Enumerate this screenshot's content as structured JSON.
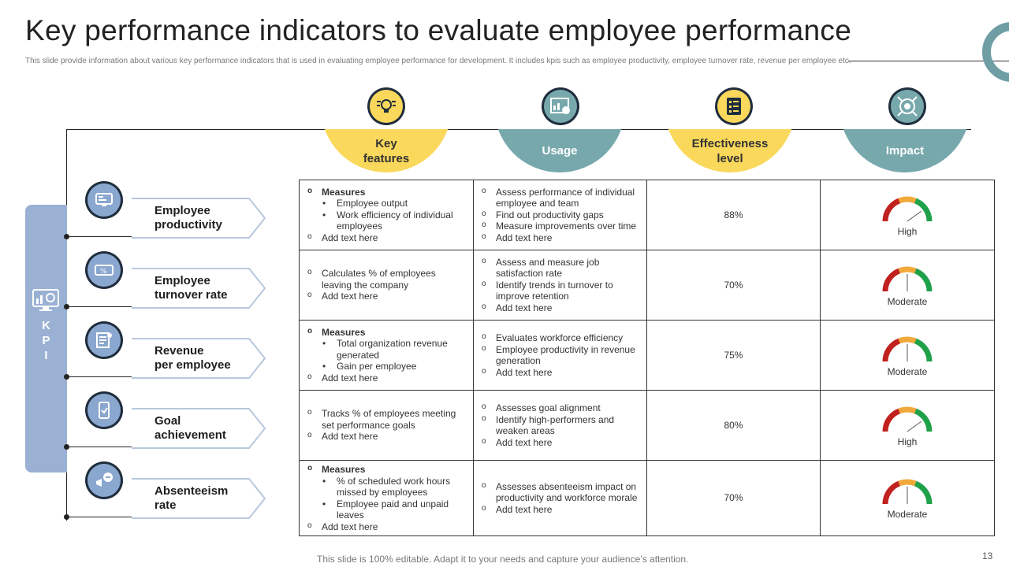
{
  "title": "Key performance indicators to evaluate employee performance",
  "subtitle": "This slide provide information about various key performance indicators that is used in evaluating employee performance for development. It includes kpis such as employee productivity, employee turnover rate, revenue per employee etc.",
  "kpi_label": [
    "K",
    "P",
    "I"
  ],
  "columns": [
    {
      "label_line1": "Key",
      "label_line2": "features",
      "icon": "bulb-gears-icon"
    },
    {
      "label_line1": "Usage",
      "label_line2": "",
      "icon": "dashboard-chart-icon"
    },
    {
      "label_line1": "Effectiveness",
      "label_line2": "level",
      "icon": "checklist-icon"
    },
    {
      "label_line1": "Impact",
      "label_line2": "",
      "icon": "target-gear-icon"
    }
  ],
  "rows": [
    {
      "label_line1": "Employee",
      "label_line2": "productivity",
      "icon": "monitor-icon",
      "features": [
        {
          "type": "o",
          "bold": true,
          "text": "Measures"
        },
        {
          "type": "b",
          "text": "Employee output"
        },
        {
          "type": "b",
          "text": "Work efficiency of individual employees"
        },
        {
          "type": "o",
          "text": "Add text here"
        }
      ],
      "usage": [
        "Assess performance of individual employee and team",
        "Find out productivity gaps",
        "Measure improvements over time",
        "Add text here"
      ],
      "effectiveness": "88%",
      "impact": "High",
      "gauge_level": 0.8
    },
    {
      "label_line1": "Employee",
      "label_line2": "turnover rate",
      "icon": "percent-ticket-icon",
      "features": [
        {
          "type": "o",
          "text": "Calculates % of employees leaving the company"
        },
        {
          "type": "o",
          "text": "Add text here"
        }
      ],
      "usage": [
        "Assess and measure job satisfaction rate",
        " Identify trends in turnover to improve retention",
        "Add text here"
      ],
      "effectiveness": "70%",
      "impact": "Moderate",
      "gauge_level": 0.5
    },
    {
      "label_line1": "Revenue",
      "label_line2": "per employee",
      "icon": "report-icon",
      "features": [
        {
          "type": "o",
          "bold": true,
          "text": "Measures"
        },
        {
          "type": "b",
          "text": "Total organization revenue generated"
        },
        {
          "type": "b",
          "text": "Gain per employee"
        },
        {
          "type": "o",
          "text": "Add text here"
        }
      ],
      "usage": [
        "Evaluates workforce efficiency",
        "Employee productivity in revenue generation",
        "Add text here"
      ],
      "effectiveness": "75%",
      "impact": "Moderate",
      "gauge_level": 0.5
    },
    {
      "label_line1": "Goal",
      "label_line2": "achievement",
      "icon": "mobile-goal-icon",
      "features": [
        {
          "type": "o",
          "text": "Tracks % of employees meeting set performance goals"
        },
        {
          "type": "o",
          "text": "Add text here"
        }
      ],
      "usage": [
        "Assesses goal alignment",
        "Identify high-performers and weaken areas",
        "Add text here"
      ],
      "effectiveness": "80%",
      "impact": "High",
      "gauge_level": 0.8
    },
    {
      "label_line1": "Absenteeism",
      "label_line2": "rate",
      "icon": "megaphone-chat-icon",
      "features": [
        {
          "type": "o",
          "bold": true,
          "text": "Measures"
        },
        {
          "type": "b",
          "text": "% of scheduled work hours missed by employees"
        },
        {
          "type": "b",
          "text": "Employee paid and unpaid leaves"
        },
        {
          "type": "o",
          "text": "Add text here"
        }
      ],
      "usage": [
        "Assesses absenteeism impact on productivity and workforce morale",
        "Add text here"
      ],
      "effectiveness": "70%",
      "impact": "Moderate",
      "gauge_level": 0.5
    }
  ],
  "footer": "This slide is 100% editable. Adapt it to your needs and capture your audience’s attention.",
  "page_number": "13",
  "colors": {
    "yellow": "#f9d85c",
    "teal": "#77a8ac",
    "kpi_band": "#9ab1d4",
    "gauge_red": "#c0211f",
    "gauge_orange": "#f0a93a",
    "gauge_green": "#1fa14a"
  }
}
